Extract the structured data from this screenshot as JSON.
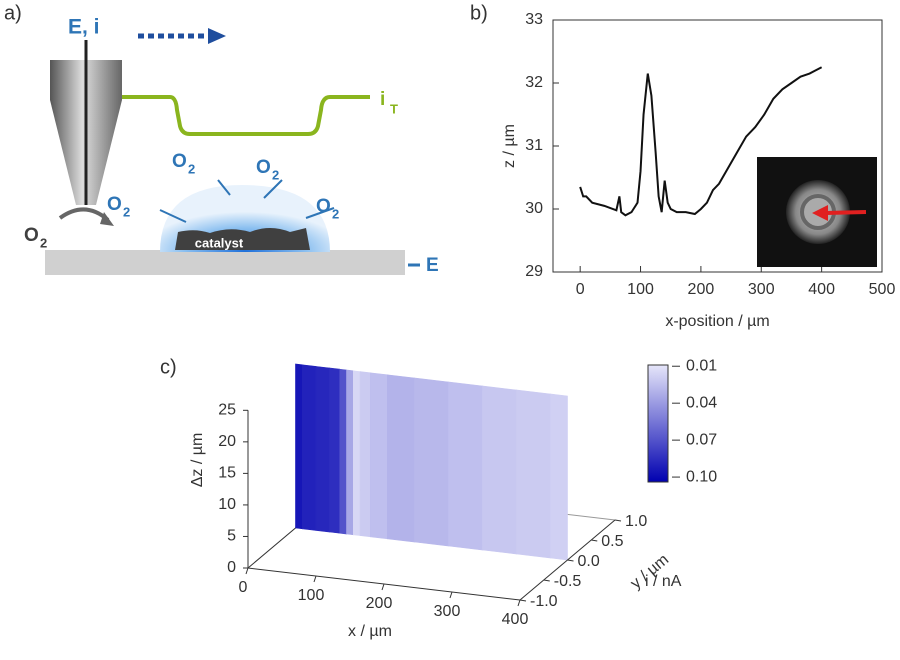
{
  "panel_labels": [
    "a)",
    "b)",
    "c)"
  ],
  "diagram": {
    "probe_label": "E, i",
    "tip_current": {
      "text": "i",
      "sub": "T"
    },
    "oxygen": [
      {
        "text": "O",
        "sub": "2"
      },
      {
        "text": "O",
        "sub": "2"
      },
      {
        "text": "O",
        "sub": "2"
      },
      {
        "text": "O",
        "sub": "2"
      },
      {
        "text": "O",
        "sub": "2"
      }
    ],
    "catalyst": "catalyst",
    "substrate_label": "E"
  },
  "chart_data": [
    {
      "type": "line",
      "ylabel": "z / µm",
      "xlabel": "x-position / µm",
      "xlim": [
        -45,
        500
      ],
      "ylim": [
        29,
        33
      ],
      "xticks": [
        0,
        100,
        200,
        300,
        400,
        500
      ],
      "yticks": [
        29,
        30,
        31,
        32,
        33
      ],
      "x": [
        0,
        5,
        10,
        20,
        40,
        60,
        65,
        68,
        75,
        85,
        95,
        100,
        105,
        112,
        118,
        125,
        130,
        135,
        140,
        145,
        150,
        160,
        175,
        190,
        200,
        210,
        220,
        230,
        245,
        260,
        275,
        290,
        305,
        320,
        335,
        350,
        365,
        380,
        390,
        400
      ],
      "series": [
        {
          "color": "#111111",
          "values": [
            30.35,
            30.2,
            30.2,
            30.1,
            30.05,
            29.98,
            30.2,
            29.95,
            29.9,
            29.95,
            30.1,
            30.6,
            31.5,
            32.15,
            31.8,
            30.9,
            30.2,
            29.95,
            30.45,
            30.1,
            30.0,
            29.95,
            29.95,
            29.92,
            30.0,
            30.1,
            30.3,
            30.4,
            30.65,
            30.9,
            31.15,
            31.3,
            31.5,
            31.75,
            31.9,
            32.0,
            32.1,
            32.15,
            32.2,
            32.25
          ]
        }
      ]
    },
    {
      "type": "surface3d",
      "xlabel": "x / µm",
      "ylabel": "y / µm",
      "zlabel": "Δz / µm",
      "colorbar_label": "i / nA",
      "xlim": [
        0,
        400
      ],
      "ylim": [
        -1,
        1
      ],
      "zlim": [
        0,
        26
      ],
      "clim": [
        0.009,
        0.104
      ],
      "xticks": [
        0,
        100,
        200,
        300,
        400
      ],
      "yticks": [
        {
          "value": -1,
          "label": "-1.0"
        },
        {
          "value": -0.5,
          "label": "-0.5"
        },
        {
          "value": 0,
          "label": "0.0"
        },
        {
          "value": 0.5,
          "label": "0.5"
        },
        {
          "value": 1,
          "label": "1.0"
        }
      ],
      "zticks": [
        0,
        5,
        10,
        15,
        20,
        25
      ],
      "cticks": [
        0.01,
        0.04,
        0.07,
        {
          "value": 0.1,
          "label": "0.10"
        }
      ],
      "x": [
        0,
        20,
        40,
        60,
        70,
        80,
        90,
        100,
        120,
        150,
        200,
        250,
        300,
        350,
        400
      ],
      "values": [
        0.095,
        0.09,
        0.088,
        0.085,
        0.07,
        0.035,
        0.015,
        0.02,
        0.025,
        0.03,
        0.028,
        0.025,
        0.022,
        0.02,
        0.018
      ]
    }
  ]
}
